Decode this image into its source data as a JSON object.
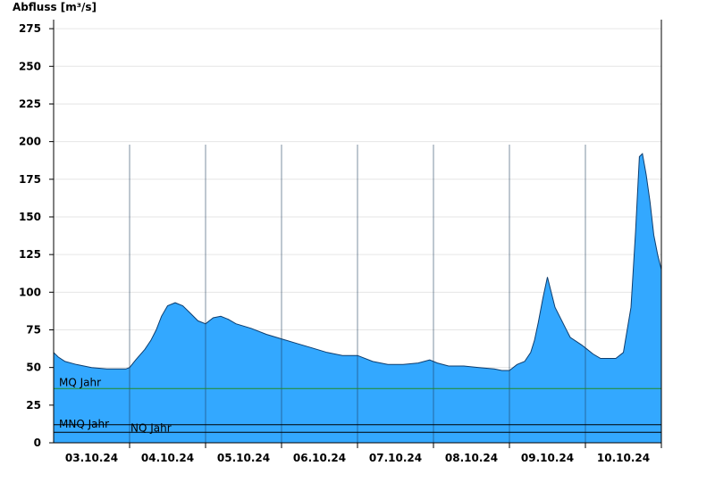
{
  "chart_data": {
    "type": "area",
    "title": "",
    "ylabel": "Abfluss [m³/s]",
    "xlabel": "",
    "ylim": [
      0,
      280
    ],
    "yticks": [
      0,
      25,
      50,
      75,
      100,
      125,
      150,
      175,
      200,
      225,
      250,
      275
    ],
    "xlim_days": [
      0,
      8
    ],
    "x_day_labels": [
      "03.10.24",
      "04.10.24",
      "05.10.24",
      "06.10.24",
      "07.10.24",
      "08.10.24",
      "09.10.24",
      "10.10.24"
    ],
    "grid": true,
    "colors": {
      "fill": "#33a8ff",
      "stroke": "#0d3d6e",
      "mq_line": "#228b22",
      "nq_line": "#000000"
    },
    "reference_lines": [
      {
        "name": "MQ Jahr",
        "value": 36,
        "label": "MQ Jahr"
      },
      {
        "name": "MNQ Jahr",
        "value": 12,
        "label": "MNQ Jahr"
      },
      {
        "name": "NQ Jahr",
        "value": 7,
        "label": "NQ Jahr"
      }
    ],
    "series": [
      {
        "x": [
          0,
          0.06,
          0.15,
          0.3,
          0.5,
          0.7,
          0.85,
          0.95,
          1.0,
          1.08,
          1.2,
          1.28,
          1.35,
          1.42,
          1.5,
          1.6,
          1.7,
          1.8,
          1.9,
          2.0,
          2.1,
          2.2,
          2.3,
          2.4,
          2.6,
          2.8,
          3.0,
          3.2,
          3.4,
          3.6,
          3.8,
          4.0,
          4.2,
          4.4,
          4.6,
          4.8,
          4.95,
          5.05,
          5.2,
          5.4,
          5.6,
          5.8,
          5.9,
          6.0,
          6.1,
          6.2,
          6.28,
          6.33,
          6.38,
          6.44,
          6.5,
          6.6,
          6.8,
          6.95,
          7.0,
          7.1,
          7.2,
          7.3,
          7.4,
          7.5,
          7.6,
          7.66,
          7.71,
          7.75,
          7.8,
          7.85,
          7.9,
          7.95,
          8.0
        ],
        "y": [
          60,
          57,
          54,
          52,
          50,
          49,
          49,
          49,
          50,
          55,
          62,
          68,
          75,
          84,
          91,
          93,
          91,
          86,
          81,
          79,
          83,
          84,
          82,
          79,
          76,
          72,
          69,
          66,
          63,
          60,
          58,
          58,
          54,
          52,
          52,
          53,
          55,
          53,
          51,
          51,
          50,
          49,
          48,
          48,
          52,
          54,
          60,
          68,
          80,
          96,
          110,
          90,
          70,
          65,
          63,
          59,
          56,
          56,
          56,
          60,
          90,
          140,
          190,
          192,
          178,
          160,
          138,
          125,
          115
        ]
      }
    ]
  }
}
